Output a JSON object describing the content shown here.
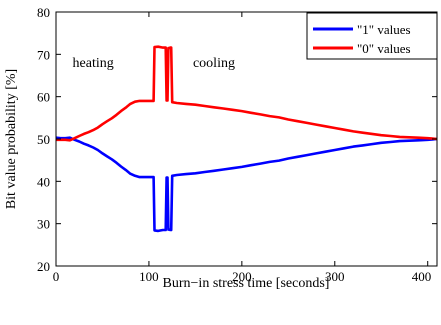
{
  "chart_data": {
    "type": "line",
    "title": "",
    "xlabel": "Burn−in stress time [seconds]",
    "ylabel": "Bit value probability [%]",
    "xlim": [
      0,
      410
    ],
    "ylim": [
      20,
      80
    ],
    "x_ticks": [
      {
        "value": 0,
        "label": "0"
      },
      {
        "value": 100,
        "label": "100"
      },
      {
        "value": 200,
        "label": "200"
      },
      {
        "value": 300,
        "label": "300"
      },
      {
        "value": 400,
        "label": "400"
      }
    ],
    "y_ticks": [
      {
        "value": 20,
        "label": "20"
      },
      {
        "value": 30,
        "label": "30"
      },
      {
        "value": 40,
        "label": "40"
      },
      {
        "value": 50,
        "label": "50"
      },
      {
        "value": 60,
        "label": "60"
      },
      {
        "value": 70,
        "label": "70"
      },
      {
        "value": 80,
        "label": "80"
      }
    ],
    "grid": false,
    "legend_position": "top-right",
    "annotations": [
      {
        "text": "heating",
        "x": 40,
        "y": 67
      },
      {
        "text": "cooling",
        "x": 170,
        "y": 67
      }
    ],
    "series": [
      {
        "name": "\"1\" values",
        "color": "#0000ff",
        "x": [
          0,
          5,
          10,
          15,
          20,
          25,
          30,
          35,
          40,
          45,
          50,
          55,
          60,
          65,
          70,
          75,
          80,
          85,
          90,
          95,
          100,
          104,
          105,
          106,
          110,
          115,
          118,
          119,
          120,
          121,
          122,
          123,
          124,
          125,
          130,
          140,
          150,
          160,
          170,
          180,
          190,
          200,
          210,
          220,
          230,
          240,
          250,
          260,
          270,
          280,
          290,
          300,
          310,
          320,
          330,
          340,
          350,
          360,
          370,
          380,
          390,
          400,
          405,
          410
        ],
        "y": [
          50.3,
          50.2,
          50.2,
          50.3,
          49.8,
          49.4,
          48.9,
          48.5,
          48.0,
          47.4,
          46.6,
          45.9,
          45.2,
          44.4,
          43.5,
          42.7,
          41.8,
          41.3,
          41.0,
          41.0,
          41.0,
          41.0,
          41.0,
          28.4,
          28.3,
          28.5,
          28.5,
          40.9,
          40.9,
          28.6,
          28.6,
          28.5,
          28.5,
          41.3,
          41.5,
          41.7,
          41.9,
          42.2,
          42.5,
          42.8,
          43.1,
          43.4,
          43.8,
          44.2,
          44.6,
          44.9,
          45.4,
          45.8,
          46.2,
          46.6,
          47.0,
          47.4,
          47.8,
          48.2,
          48.5,
          48.8,
          49.1,
          49.3,
          49.5,
          49.6,
          49.7,
          49.8,
          49.9,
          50.0
        ]
      },
      {
        "name": "\"0\" values",
        "color": "#ff0000",
        "x": [
          0,
          5,
          10,
          15,
          20,
          25,
          30,
          35,
          40,
          45,
          50,
          55,
          60,
          65,
          70,
          75,
          80,
          85,
          90,
          95,
          100,
          104,
          105,
          106,
          110,
          115,
          118,
          119,
          120,
          121,
          122,
          123,
          124,
          125,
          130,
          140,
          150,
          160,
          170,
          180,
          190,
          200,
          210,
          220,
          230,
          240,
          250,
          260,
          270,
          280,
          290,
          300,
          310,
          320,
          330,
          340,
          350,
          360,
          370,
          380,
          390,
          400,
          405,
          410
        ],
        "y": [
          49.8,
          49.8,
          49.8,
          49.7,
          50.2,
          50.7,
          51.2,
          51.6,
          52.1,
          52.7,
          53.5,
          54.2,
          54.9,
          55.7,
          56.6,
          57.4,
          58.3,
          58.8,
          59.0,
          59.0,
          59.0,
          59.0,
          59.0,
          71.7,
          71.8,
          71.6,
          71.6,
          59.1,
          59.1,
          71.5,
          71.5,
          71.6,
          71.6,
          58.7,
          58.5,
          58.3,
          58.1,
          57.8,
          57.5,
          57.2,
          56.9,
          56.6,
          56.2,
          55.8,
          55.4,
          55.1,
          54.6,
          54.2,
          53.8,
          53.4,
          53.0,
          52.6,
          52.2,
          51.8,
          51.5,
          51.2,
          50.9,
          50.7,
          50.5,
          50.4,
          50.3,
          50.2,
          50.1,
          50.0
        ]
      }
    ]
  }
}
